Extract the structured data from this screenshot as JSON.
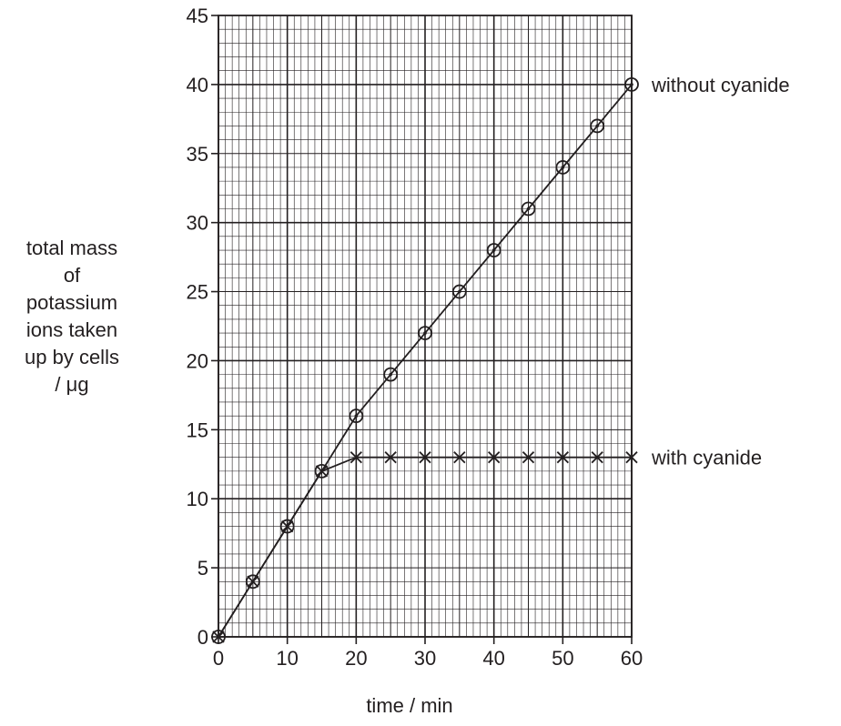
{
  "chart_data": {
    "type": "line",
    "xlabel": "time / min",
    "ylabel_lines": [
      "total mass",
      "of",
      "potassium",
      "ions taken",
      "up by cells",
      "/ μg"
    ],
    "xlim": [
      0,
      60
    ],
    "ylim": [
      0,
      45
    ],
    "x_ticks": [
      0,
      10,
      20,
      30,
      40,
      50,
      60
    ],
    "y_ticks": [
      0,
      5,
      10,
      15,
      20,
      25,
      30,
      35,
      40,
      45
    ],
    "grid": true,
    "series": [
      {
        "name": "without cyanide",
        "marker": "circle",
        "x": [
          0,
          5,
          10,
          15,
          20,
          25,
          30,
          35,
          40,
          45,
          50,
          55,
          60
        ],
        "y": [
          0,
          4,
          8,
          12,
          16,
          19,
          22,
          25,
          28,
          31,
          34,
          37,
          40
        ]
      },
      {
        "name": "with cyanide",
        "marker": "cross",
        "x": [
          0,
          5,
          10,
          15,
          20,
          25,
          30,
          35,
          40,
          45,
          50,
          55,
          60
        ],
        "y": [
          0,
          4,
          8,
          12,
          13,
          13,
          13,
          13,
          13,
          13,
          13,
          13,
          13
        ]
      }
    ],
    "colors": {
      "ink": "#231f20"
    }
  }
}
